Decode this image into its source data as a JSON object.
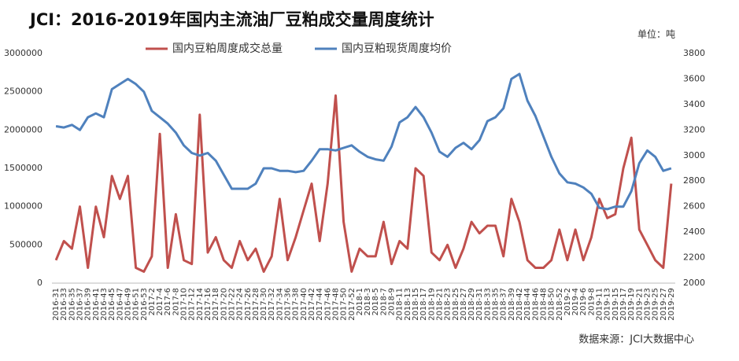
{
  "chart_data": {
    "type": "line",
    "title": "JCI：2016-2019年国内主流油厂豆粕成交量周度统计",
    "unit_label": "单位：吨",
    "source": "数据来源：JCI大数据中心",
    "categories": [
      "2016-31",
      "2016-33",
      "2016-35",
      "2016-37",
      "2016-39",
      "2016-41",
      "2016-43",
      "2016-45",
      "2016-47",
      "2016-49",
      "2016-51",
      "2016-53",
      "2017-2",
      "2017-4",
      "2017-6",
      "2017-8",
      "2017-10",
      "2017-12",
      "2017-14",
      "2017-16",
      "2017-18",
      "2017-20",
      "2017-22",
      "2017-24",
      "2017-26",
      "2017-28",
      "2017-30",
      "2017-32",
      "2017-34",
      "2017-36",
      "2017-38",
      "2017-40",
      "2017-42",
      "2017-44",
      "2017-46",
      "2017-48",
      "2017-50",
      "2017-52",
      "2018-1",
      "2018-3",
      "2018-5",
      "2018-7",
      "2018-9",
      "2018-11",
      "2018-13",
      "2018-15",
      "2018-17",
      "2018-19",
      "2018-21",
      "2018-23",
      "2018-25",
      "2018-27",
      "2018-29",
      "2018-31",
      "2018-33",
      "2018-35",
      "2018-37",
      "2018-39",
      "2018-42",
      "2018-44",
      "2018-46",
      "2018-48",
      "2018-50",
      "2018-52",
      "2019-2",
      "2019-4",
      "2019-6",
      "2019-8",
      "2019-11",
      "2019-13",
      "2019-15",
      "2019-17",
      "2019-19",
      "2019-21",
      "2019-23",
      "2019-25",
      "2019-27",
      "2019-29"
    ],
    "series": [
      {
        "name": "国内豆粕周度成交总量",
        "color": "#c0504d",
        "axis": "y",
        "values": [
          300000,
          550000,
          450000,
          1000000,
          200000,
          1000000,
          600000,
          1400000,
          1100000,
          1400000,
          200000,
          150000,
          350000,
          1950000,
          200000,
          900000,
          300000,
          250000,
          2200000,
          400000,
          600000,
          300000,
          200000,
          550000,
          300000,
          450000,
          150000,
          350000,
          1100000,
          300000,
          600000,
          950000,
          1300000,
          550000,
          1300000,
          2450000,
          800000,
          150000,
          450000,
          350000,
          350000,
          800000,
          250000,
          550000,
          450000,
          1500000,
          1400000,
          400000,
          300000,
          500000,
          200000,
          450000,
          800000,
          650000,
          750000,
          750000,
          350000,
          1100000,
          800000,
          300000,
          200000,
          200000,
          300000,
          700000,
          300000,
          700000,
          300000,
          600000,
          1100000,
          850000,
          900000,
          1500000,
          1900000,
          700000,
          500000,
          300000,
          200000,
          1300000
        ]
      },
      {
        "name": "国内豆粕现货周度均价",
        "color": "#4f81bd",
        "axis": "y2",
        "values": [
          3230,
          3220,
          3240,
          3200,
          3300,
          3330,
          3300,
          3520,
          3560,
          3600,
          3560,
          3500,
          3350,
          3300,
          3250,
          3180,
          3080,
          3020,
          3000,
          3020,
          2960,
          2850,
          2740,
          2740,
          2740,
          2780,
          2900,
          2900,
          2880,
          2880,
          2870,
          2880,
          2960,
          3050,
          3050,
          3040,
          3060,
          3080,
          3030,
          2990,
          2970,
          2960,
          3070,
          3260,
          3300,
          3380,
          3300,
          3180,
          3030,
          2990,
          3060,
          3100,
          3050,
          3120,
          3270,
          3300,
          3370,
          3600,
          3640,
          3430,
          3310,
          3150,
          2990,
          2860,
          2790,
          2780,
          2750,
          2700,
          2590,
          2580,
          2600,
          2600,
          2720,
          2940,
          3040,
          2990,
          2880,
          2900
        ]
      }
    ],
    "ylim": [
      0,
      3000000
    ],
    "yticks": [
      0,
      500000,
      1000000,
      1500000,
      2000000,
      2500000,
      3000000
    ],
    "y2lim": [
      2000,
      3800
    ],
    "y2ticks": [
      2000,
      2200,
      2400,
      2600,
      2800,
      3000,
      3200,
      3400,
      3600,
      3800
    ],
    "grid": false,
    "legend": "top"
  }
}
